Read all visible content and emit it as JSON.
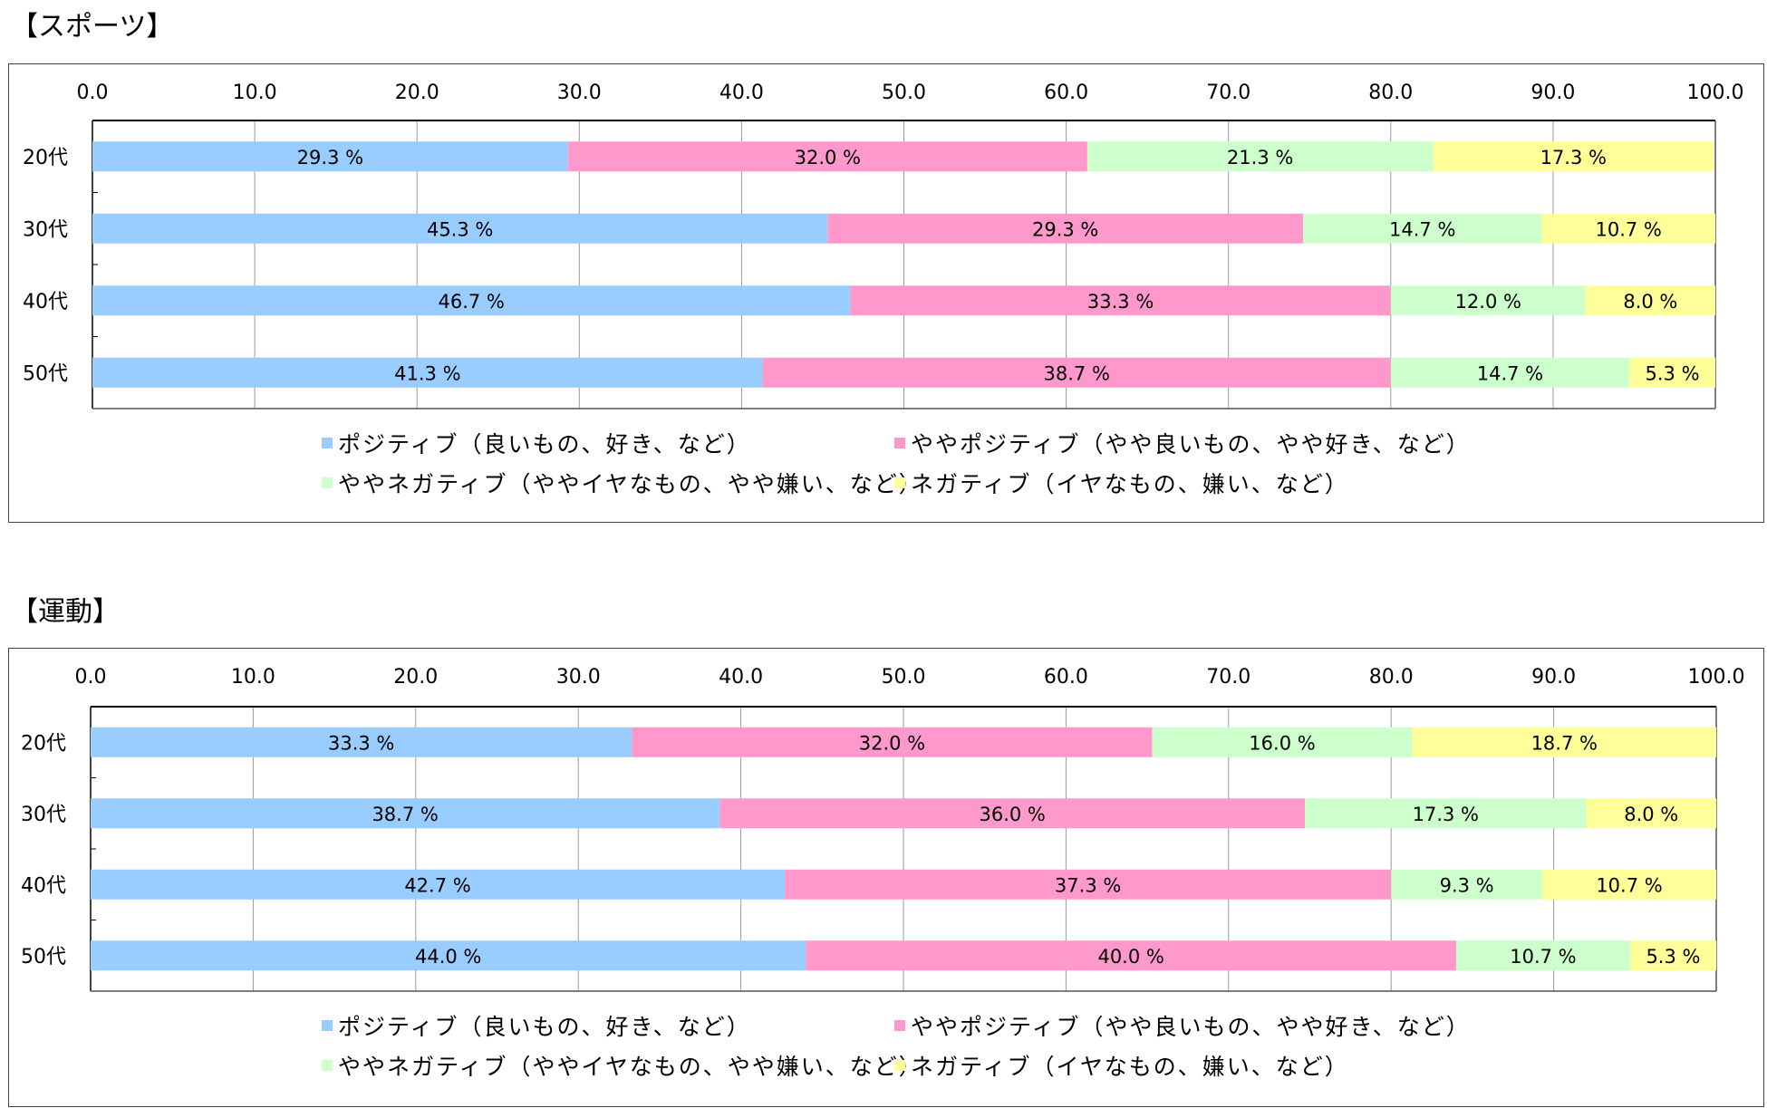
{
  "chart_data": [
    {
      "type": "bar",
      "orientation": "horizontal",
      "stacked": true,
      "title": "【スポーツ】",
      "categories": [
        "20代",
        "30代",
        "40代",
        "50代"
      ],
      "xlim": [
        0,
        100
      ],
      "x_ticks": [
        "0.0",
        "10.0",
        "20.0",
        "30.0",
        "40.0",
        "50.0",
        "60.0",
        "70.0",
        "80.0",
        "90.0",
        "100.0"
      ],
      "series": [
        {
          "name": "ポジティブ（良いもの、好き、など）",
          "color": "#99CCFF",
          "values": [
            29.3,
            45.3,
            46.7,
            41.3
          ],
          "labels": [
            "29.3 %",
            "45.3 %",
            "46.7 %",
            "41.3 %"
          ]
        },
        {
          "name": "ややポジティブ（やや良いもの、やや好き、など）",
          "color": "#FF99CC",
          "values": [
            32.0,
            29.3,
            33.3,
            38.7
          ],
          "labels": [
            "32.0 %",
            "29.3 %",
            "33.3 %",
            "38.7 %"
          ]
        },
        {
          "name": "ややネガティブ（ややイヤなもの、やや嫌い、など）",
          "color": "#CCFFCC",
          "values": [
            21.3,
            14.7,
            12.0,
            14.7
          ],
          "labels": [
            "21.3 %",
            "14.7 %",
            "12.0 %",
            "14.7 %"
          ]
        },
        {
          "name": "ネガティブ（イヤなもの、嫌い、など）",
          "color": "#FFFF99",
          "values": [
            17.3,
            10.7,
            8.0,
            5.3
          ],
          "labels": [
            "17.3 %",
            "10.7 %",
            "8.0 %",
            "5.3 %"
          ]
        }
      ],
      "grid": true,
      "legend": "bottom"
    },
    {
      "type": "bar",
      "orientation": "horizontal",
      "stacked": true,
      "title": "【運動】",
      "categories": [
        "20代",
        "30代",
        "40代",
        "50代"
      ],
      "xlim": [
        0,
        100
      ],
      "x_ticks": [
        "0.0",
        "10.0",
        "20.0",
        "30.0",
        "40.0",
        "50.0",
        "60.0",
        "70.0",
        "80.0",
        "90.0",
        "100.0"
      ],
      "series": [
        {
          "name": "ポジティブ（良いもの、好き、など）",
          "color": "#99CCFF",
          "values": [
            33.3,
            38.7,
            42.7,
            44.0
          ],
          "labels": [
            "33.3 %",
            "38.7 %",
            "42.7 %",
            "44.0 %"
          ]
        },
        {
          "name": "ややポジティブ（やや良いもの、やや好き、など）",
          "color": "#FF99CC",
          "values": [
            32.0,
            36.0,
            37.3,
            40.0
          ],
          "labels": [
            "32.0 %",
            "36.0 %",
            "37.3 %",
            "40.0 %"
          ]
        },
        {
          "name": "ややネガティブ（ややイヤなもの、やや嫌い、など）",
          "color": "#CCFFCC",
          "values": [
            16.0,
            17.3,
            9.3,
            10.7
          ],
          "labels": [
            "16.0 %",
            "17.3 %",
            "9.3 %",
            "10.7 %"
          ]
        },
        {
          "name": "ネガティブ（イヤなもの、嫌い、など）",
          "color": "#FFFF99",
          "values": [
            18.7,
            8.0,
            10.7,
            5.3
          ],
          "labels": [
            "18.7 %",
            "8.0 %",
            "10.7 %",
            "5.3 %"
          ]
        }
      ],
      "grid": true,
      "legend": "bottom"
    }
  ]
}
